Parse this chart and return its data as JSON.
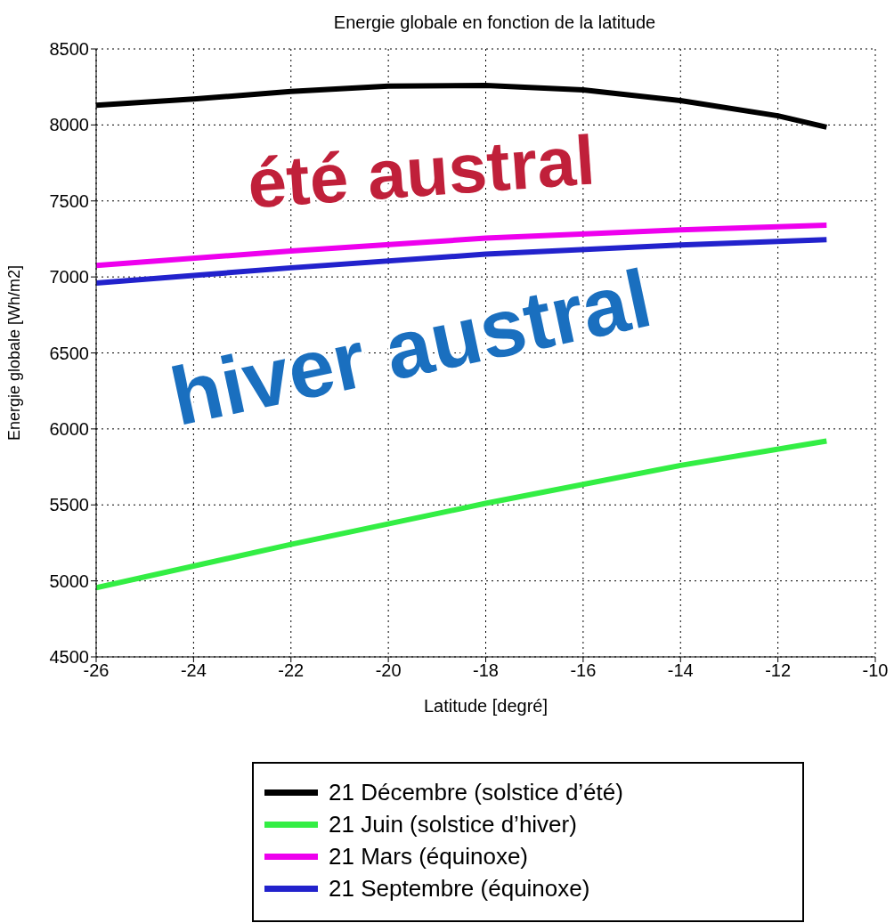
{
  "chart_data": {
    "type": "line",
    "title": "Energie globale en fonction de la latitude",
    "xlabel": "Latitude [degré]",
    "ylabel": "Energie globale [Wh/m2]",
    "xlim": [
      -26,
      -10
    ],
    "xticks": [
      -26,
      -24,
      -22,
      -20,
      -18,
      -16,
      -14,
      -12,
      -10
    ],
    "ylim": [
      4500,
      8500
    ],
    "yticks": [
      4500,
      5000,
      5500,
      6000,
      6500,
      7000,
      7500,
      8000,
      8500
    ],
    "grid": true,
    "legend": "bottom",
    "line_style": "solid",
    "marker": "none",
    "annotations": [
      "été austral",
      "hiver austral"
    ],
    "series": [
      {
        "name": "21 Décembre (solstice d’été)",
        "color": "#000000",
        "x": [
          -26,
          -24,
          -22,
          -20,
          -18,
          -16,
          -14,
          -12,
          -11
        ],
        "values": [
          8130,
          8170,
          8220,
          8255,
          8260,
          8230,
          8160,
          8060,
          7985
        ]
      },
      {
        "name": "21 Juin (solstice d’hiver)",
        "color": "#33ee44",
        "x": [
          -26,
          -22,
          -18,
          -14,
          -11
        ],
        "values": [
          4955,
          5240,
          5510,
          5760,
          5920
        ]
      },
      {
        "name": "21 Mars (équinoxe)",
        "color": "#ee00ee",
        "x": [
          -26,
          -22,
          -18,
          -14,
          -11
        ],
        "values": [
          7075,
          7170,
          7255,
          7310,
          7340
        ]
      },
      {
        "name": "21 Septembre (équinoxe)",
        "color": "#2222cc",
        "x": [
          -26,
          -22,
          -18,
          -14,
          -11
        ],
        "values": [
          6960,
          7060,
          7150,
          7210,
          7245
        ]
      }
    ]
  }
}
